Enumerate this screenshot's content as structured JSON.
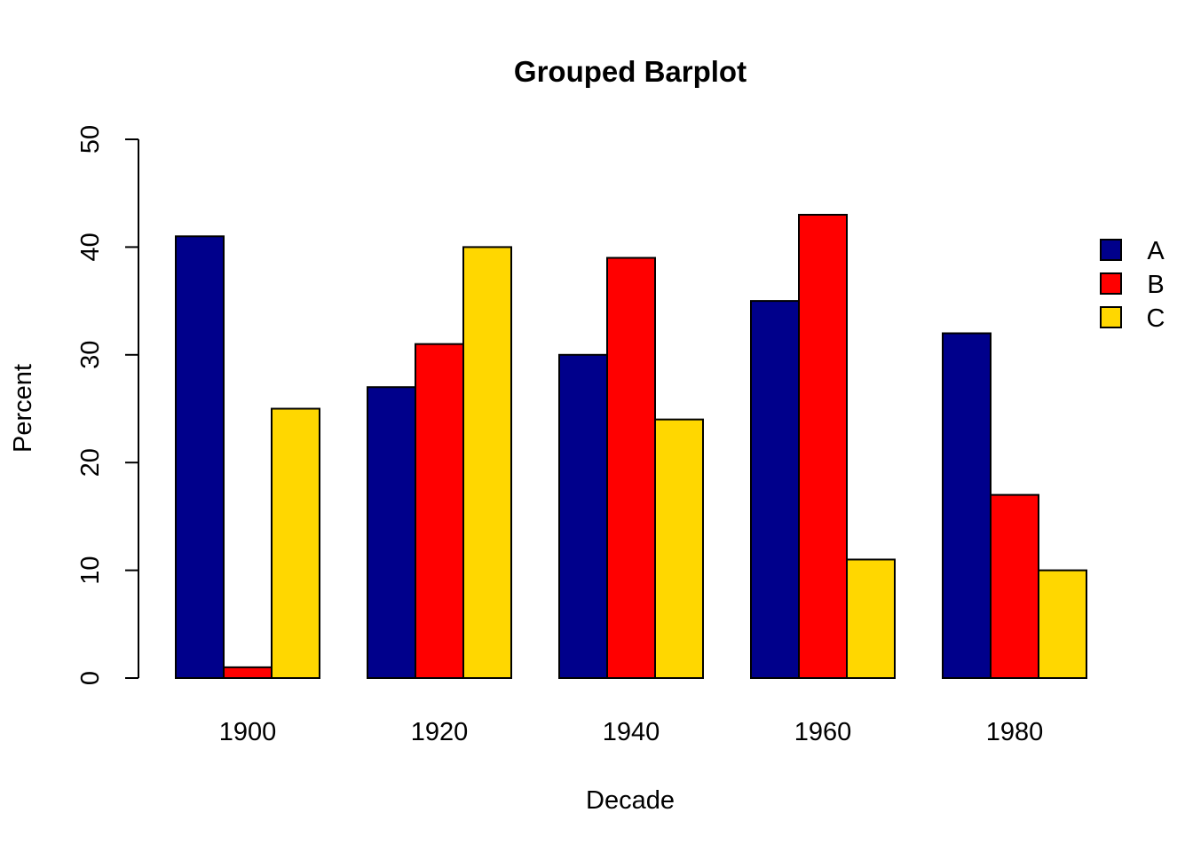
{
  "chart_data": {
    "type": "bar",
    "title": "Grouped Barplot",
    "xlabel": "Decade",
    "ylabel": "Percent",
    "categories": [
      "1900",
      "1920",
      "1940",
      "1960",
      "1980"
    ],
    "series": [
      {
        "name": "A",
        "color": "#00008B",
        "values": [
          41,
          27,
          30,
          35,
          32
        ]
      },
      {
        "name": "B",
        "color": "#FF0000",
        "values": [
          1,
          31,
          39,
          43,
          17
        ]
      },
      {
        "name": "C",
        "color": "#FFD700",
        "values": [
          25,
          40,
          24,
          11,
          10
        ]
      }
    ],
    "ylim": [
      0,
      50
    ],
    "yticks": [
      "0",
      "10",
      "20",
      "30",
      "40",
      "50"
    ],
    "grid": false,
    "legend_position": "right"
  }
}
